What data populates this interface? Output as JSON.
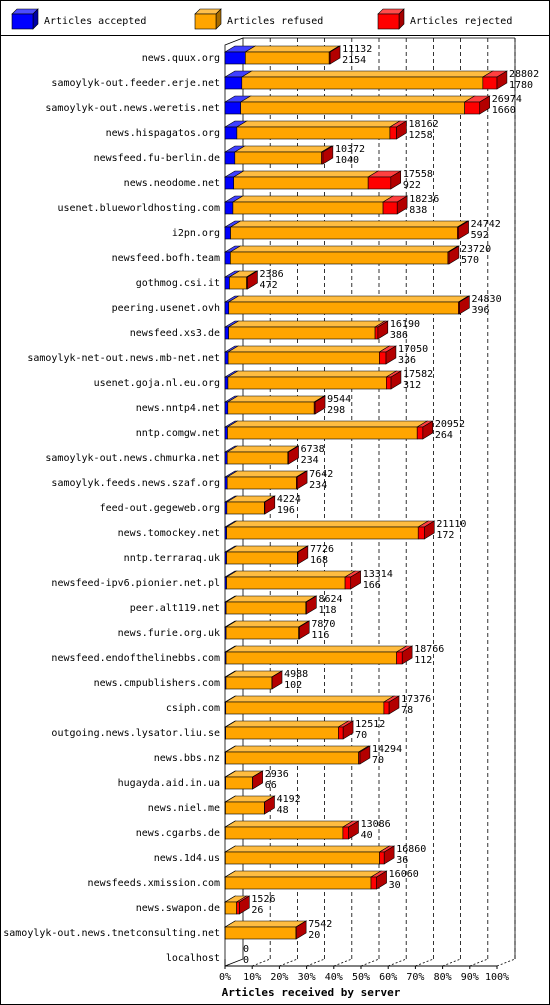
{
  "chart_data": {
    "type": "bar",
    "orientation": "horizontal",
    "stacked": true,
    "xlabel": "Articles received by server",
    "xlim": [
      0,
      100
    ],
    "x_ticks": [
      "0%",
      "10%",
      "20%",
      "30%",
      "40%",
      "50%",
      "60%",
      "70%",
      "80%",
      "90%",
      "100%"
    ],
    "grid": "vertical dashed",
    "legend_position": "top",
    "legend": [
      {
        "name": "Articles accepted",
        "color": "#0000ff"
      },
      {
        "name": "Articles refused",
        "color": "#ffa500"
      },
      {
        "name": "Articles rejected",
        "color": "#ff0000"
      }
    ],
    "servers": [
      {
        "name": "news.quux.org",
        "total": 11132,
        "accepted": 2154,
        "rejected": 100
      },
      {
        "name": "samoylyk-out.feeder.erje.net",
        "total": 28802,
        "accepted": 1780,
        "rejected": 1500
      },
      {
        "name": "samoylyk-out.news.weretis.net",
        "total": 26974,
        "accepted": 1660,
        "rejected": 1600
      },
      {
        "name": "news.hispagatos.org",
        "total": 18162,
        "accepted": 1258,
        "rejected": 700
      },
      {
        "name": "newsfeed.fu-berlin.de",
        "total": 10372,
        "accepted": 1040,
        "rejected": 150
      },
      {
        "name": "news.neodome.net",
        "total": 17558,
        "accepted": 922,
        "rejected": 2400
      },
      {
        "name": "usenet.blueworldhosting.com",
        "total": 18236,
        "accepted": 838,
        "rejected": 1500
      },
      {
        "name": "i2pn.org",
        "total": 24742,
        "accepted": 592,
        "rejected": 130
      },
      {
        "name": "newsfeed.bofh.team",
        "total": 23720,
        "accepted": 570,
        "rejected": 120
      },
      {
        "name": "gothmog.csi.it",
        "total": 2386,
        "accepted": 472,
        "rejected": 100
      },
      {
        "name": "peering.usenet.ovh",
        "total": 24830,
        "accepted": 396,
        "rejected": 110
      },
      {
        "name": "newsfeed.xs3.de",
        "total": 16190,
        "accepted": 386,
        "rejected": 300
      },
      {
        "name": "samoylyk-net-out.news.mb-net.net",
        "total": 17050,
        "accepted": 336,
        "rejected": 700
      },
      {
        "name": "usenet.goja.nl.eu.org",
        "total": 17582,
        "accepted": 312,
        "rejected": 500
      },
      {
        "name": "news.nntp4.net",
        "total": 9544,
        "accepted": 298,
        "rejected": 100
      },
      {
        "name": "nntp.comgw.net",
        "total": 20952,
        "accepted": 264,
        "rejected": 600
      },
      {
        "name": "samoylyk-out.news.chmurka.net",
        "total": 6738,
        "accepted": 234,
        "rejected": 90
      },
      {
        "name": "samoylyk.feeds.news.szaf.org",
        "total": 7642,
        "accepted": 234,
        "rejected": 90
      },
      {
        "name": "feed-out.gegeweb.org",
        "total": 4224,
        "accepted": 196,
        "rejected": 60
      },
      {
        "name": "news.tomockey.net",
        "total": 21110,
        "accepted": 172,
        "rejected": 650
      },
      {
        "name": "nntp.terraraq.uk",
        "total": 7726,
        "accepted": 168,
        "rejected": 60
      },
      {
        "name": "newsfeed-ipv6.pionier.net.pl",
        "total": 13314,
        "accepted": 166,
        "rejected": 600
      },
      {
        "name": "peer.alt119.net",
        "total": 8624,
        "accepted": 118,
        "rejected": 70
      },
      {
        "name": "news.furie.org.uk",
        "total": 7870,
        "accepted": 116,
        "rejected": 70
      },
      {
        "name": "newsfeed.endofthelinebbs.com",
        "total": 18766,
        "accepted": 112,
        "rejected": 600
      },
      {
        "name": "news.cmpublishers.com",
        "total": 4988,
        "accepted": 102,
        "rejected": 30
      },
      {
        "name": "csiph.com",
        "total": 17376,
        "accepted": 78,
        "rejected": 550
      },
      {
        "name": "outgoing.news.lysator.liu.se",
        "total": 12512,
        "accepted": 70,
        "rejected": 500
      },
      {
        "name": "news.bbs.nz",
        "total": 14294,
        "accepted": 70,
        "rejected": 150
      },
      {
        "name": "hugayda.aid.in.ua",
        "total": 2936,
        "accepted": 66,
        "rejected": 20
      },
      {
        "name": "news.niel.me",
        "total": 4192,
        "accepted": 48,
        "rejected": 20
      },
      {
        "name": "news.cgarbs.de",
        "total": 13086,
        "accepted": 40,
        "rejected": 600
      },
      {
        "name": "news.1d4.us",
        "total": 16860,
        "accepted": 36,
        "rejected": 500
      },
      {
        "name": "newsfeeds.xmission.com",
        "total": 16060,
        "accepted": 30,
        "rejected": 600
      },
      {
        "name": "news.swapon.de",
        "total": 1526,
        "accepted": 26,
        "rejected": 300
      },
      {
        "name": "samoylyk-out.news.tnetconsulting.net",
        "total": 7542,
        "accepted": 20,
        "rejected": 30
      },
      {
        "name": "localhost",
        "total": 0,
        "accepted": 0,
        "rejected": 0
      }
    ]
  }
}
